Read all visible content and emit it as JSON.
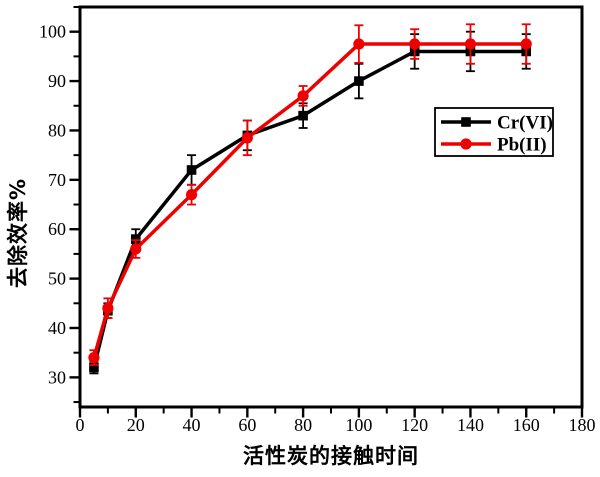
{
  "chart_data": {
    "type": "line",
    "title": "",
    "xlabel": "活性炭的接触时间",
    "ylabel": "去除效率%",
    "xlim": [
      0,
      180
    ],
    "ylim": [
      24,
      105
    ],
    "x_major_ticks": [
      0,
      20,
      40,
      60,
      80,
      100,
      120,
      140,
      160,
      180
    ],
    "x_minor_ticks": [
      10,
      30,
      50,
      70,
      90,
      110,
      130,
      150,
      170
    ],
    "y_major_ticks": [
      30,
      40,
      50,
      60,
      70,
      80,
      90,
      100
    ],
    "y_minor_ticks": [
      25,
      35,
      45,
      55,
      65,
      75,
      85,
      95,
      105
    ],
    "grid": false,
    "frame": true,
    "background": "#ffffff",
    "axis_color": "#000000",
    "x": [
      5,
      10,
      20,
      40,
      60,
      80,
      100,
      120,
      140,
      160
    ],
    "series": [
      {
        "name": "Cr(VI)",
        "color": "#000000",
        "marker": "square",
        "values": [
          32,
          43.5,
          58,
          72,
          79,
          83,
          90,
          96,
          96,
          96
        ],
        "errors": [
          1.2,
          1.5,
          2,
          3,
          3,
          2.5,
          3.5,
          3.5,
          4,
          3.5
        ]
      },
      {
        "name": "Pb(II)",
        "color": "#ee0000",
        "marker": "circle",
        "values": [
          34,
          44,
          56,
          67,
          78.5,
          87,
          97.5,
          97.5,
          97.5,
          97.5
        ],
        "errors": [
          1.5,
          2,
          1.8,
          2,
          3.5,
          2,
          3.8,
          3,
          4,
          4
        ]
      }
    ],
    "legend": {
      "position": "right-center",
      "border": true,
      "entries": [
        "Cr(VI)",
        "Pb(II)"
      ]
    }
  }
}
